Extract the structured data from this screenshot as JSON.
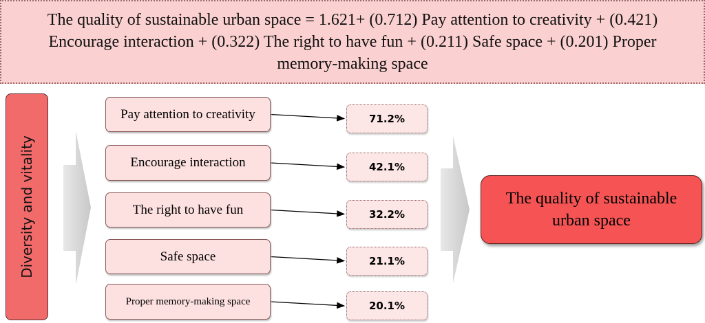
{
  "equation": "The quality of sustainable urban space = 1.621+ (0.712) Pay attention to creativity + (0.421) Encourage interaction + (0.322) The right to have fun + (0.211) Safe space + (0.201) Proper memory-making space",
  "side_label": "Diversity and vitality",
  "factors": [
    {
      "label": "Pay attention to creativity",
      "value": "71.2%"
    },
    {
      "label": "Encourage interaction",
      "value": "42.1%"
    },
    {
      "label": "The right to have fun",
      "value": "32.2%"
    },
    {
      "label": "Safe space",
      "value": "21.1%"
    },
    {
      "label": "Proper memory-making space",
      "value": "20.1%"
    }
  ],
  "result": "The quality of sustainable urban space"
}
